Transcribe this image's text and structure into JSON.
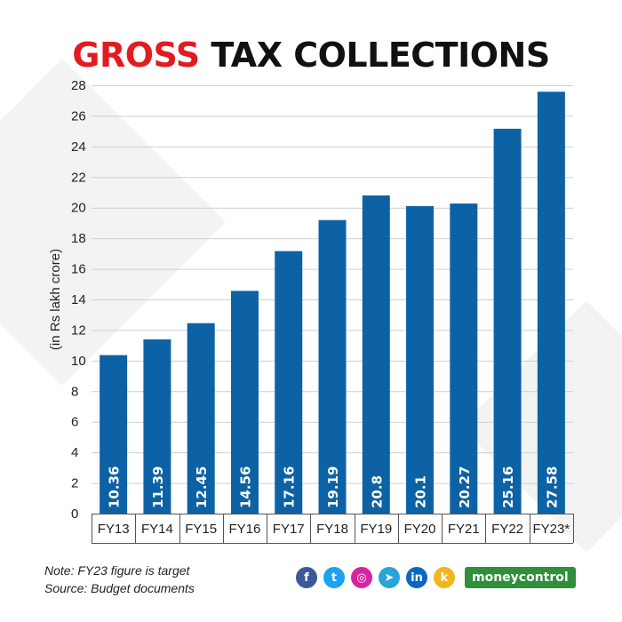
{
  "title": {
    "accent": "GROSS",
    "rest": "TAX COLLECTIONS"
  },
  "colors": {
    "bar": "#0d62a5",
    "accent": "#e11b22",
    "brand": "#2f8f3a"
  },
  "chart_data": {
    "type": "bar",
    "categories": [
      "FY13",
      "FY14",
      "FY15",
      "FY16",
      "FY17",
      "FY18",
      "FY19",
      "FY20",
      "FY21",
      "FY22",
      "FY23*"
    ],
    "values": [
      10.36,
      11.39,
      12.45,
      14.56,
      17.16,
      19.19,
      20.8,
      20.1,
      20.27,
      25.16,
      27.58
    ],
    "data_labels": [
      "10.36",
      "11.39",
      "12.45",
      "14.56",
      "17.16",
      "19.19",
      "20.8",
      "20.1",
      "20.27",
      "25.16",
      "27.58"
    ],
    "ylabel": "(in Rs lakh crore)",
    "yticks": [
      0,
      2,
      4,
      6,
      8,
      10,
      12,
      14,
      16,
      18,
      20,
      22,
      24,
      26,
      28
    ],
    "ylim": [
      0,
      28
    ],
    "grid": true
  },
  "footer": {
    "note": "Note: FY23 figure is target",
    "source": "Source: Budget documents",
    "brand": "moneycontrol",
    "social_icons": [
      {
        "name": "facebook-icon",
        "glyph": "f",
        "color": "#3b5998"
      },
      {
        "name": "twitter-icon",
        "glyph": "t",
        "color": "#1da1f2"
      },
      {
        "name": "instagram-icon",
        "glyph": "◎",
        "color": "#d6249f"
      },
      {
        "name": "telegram-icon",
        "glyph": "➤",
        "color": "#2aa3d8"
      },
      {
        "name": "linkedin-icon",
        "glyph": "in",
        "color": "#0a66c2"
      },
      {
        "name": "koo-icon",
        "glyph": "k",
        "color": "#f2b51c"
      }
    ]
  }
}
